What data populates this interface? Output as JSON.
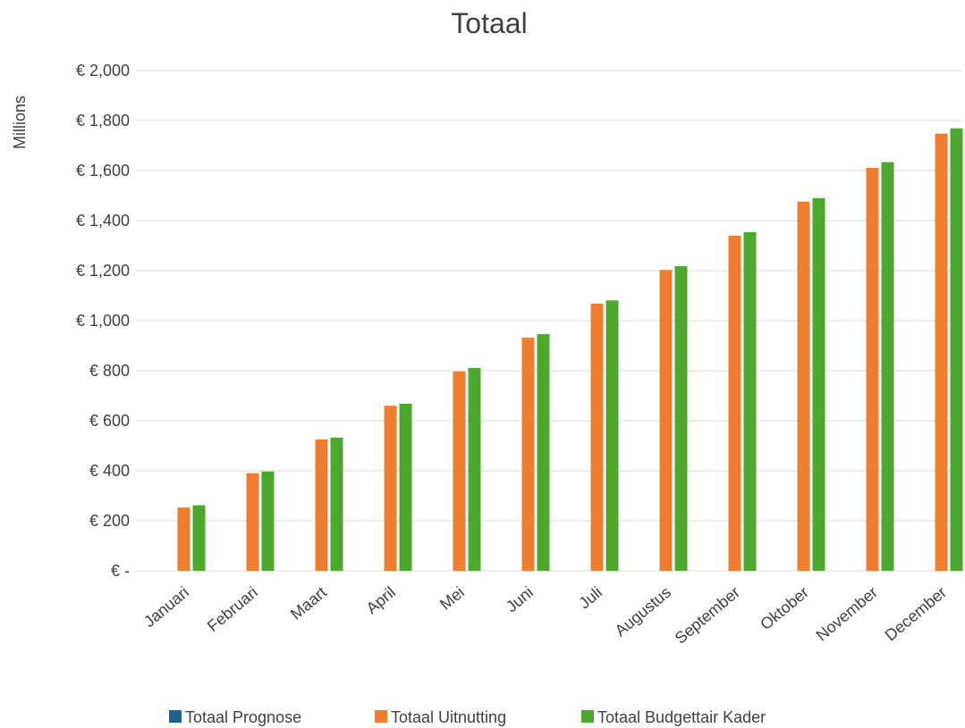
{
  "chart_data": {
    "type": "bar",
    "title": "Totaal",
    "ylabel": "Millions",
    "xlabel": "",
    "ylim": [
      0,
      2000
    ],
    "y_tick_values": [
      0,
      200,
      400,
      600,
      800,
      1000,
      1200,
      1400,
      1600,
      1800,
      2000
    ],
    "y_tick_labels": [
      "€ -",
      "€ 200",
      "€ 400",
      "€ 600",
      "€ 800",
      "€ 1,000",
      "€ 1,200",
      "€ 1,400",
      "€ 1,600",
      "€ 1,800",
      "€ 2,000"
    ],
    "grid": true,
    "legend_position": "bottom",
    "categories": [
      "Januari",
      "Februari",
      "Maart",
      "April",
      "Mei",
      "Juni",
      "Juli",
      "Augustus",
      "September",
      "Oktober",
      "November",
      "December"
    ],
    "series": [
      {
        "name": "Totaal Prognose",
        "color": "#1f6391",
        "values": [
          0,
          0,
          0,
          0,
          0,
          0,
          0,
          0,
          0,
          0,
          0,
          0
        ]
      },
      {
        "name": "Totaal Uitnutting",
        "color": "#ed7d31",
        "values": [
          253,
          390,
          525,
          660,
          797,
          932,
          1068,
          1203,
          1340,
          1476,
          1611,
          1748
        ]
      },
      {
        "name": "Totaal Budgettair Kader",
        "color": "#4ea72e",
        "values": [
          262,
          397,
          532,
          668,
          811,
          946,
          1081,
          1218,
          1354,
          1490,
          1634,
          1769
        ]
      }
    ]
  }
}
